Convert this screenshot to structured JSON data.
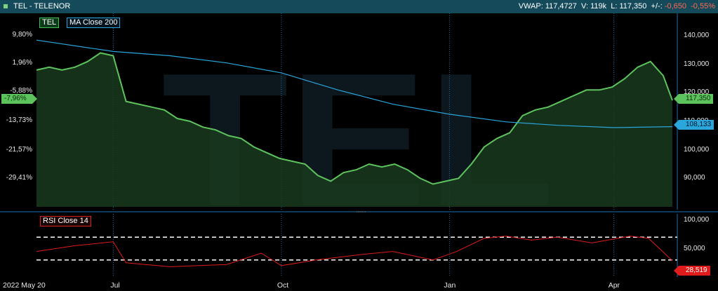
{
  "header": {
    "symbol": "TEL - TELENOR",
    "vwap": "VWAP: 117,4727",
    "volume": "V: 119k",
    "last": "L: 117,350",
    "change_label": "+/-:",
    "change": "-0,650",
    "change_pct": "-0,55%"
  },
  "watermark": "TEL",
  "legend": {
    "price": "TEL",
    "ma": "MA Close 200",
    "rsi": "RSI Close 14"
  },
  "tags": {
    "left_pct": "-7,96%",
    "price": "117,350",
    "ma": "108,133",
    "rsi": "28,519"
  },
  "colors": {
    "header_bg": "#144a5a",
    "price_line": "#5dc45d",
    "price_fill": "#1a3a1f",
    "ma_line": "#29a6dc",
    "rsi_line": "#e01b1b",
    "grid": "#1f6fb0"
  },
  "chart_data": [
    {
      "type": "area",
      "title": "TEL",
      "series": [
        {
          "name": "TEL",
          "x": [
            "2022-05-20",
            "2022-05-27",
            "2022-06-03",
            "2022-06-10",
            "2022-06-17",
            "2022-06-24",
            "2022-07-01",
            "2022-07-08",
            "2022-07-15",
            "2022-07-22",
            "2022-07-29",
            "2022-08-05",
            "2022-08-12",
            "2022-08-19",
            "2022-08-26",
            "2022-09-02",
            "2022-09-09",
            "2022-09-16",
            "2022-09-23",
            "2022-09-30",
            "2022-10-07",
            "2022-10-14",
            "2022-10-21",
            "2022-10-28",
            "2022-11-04",
            "2022-11-11",
            "2022-11-18",
            "2022-11-25",
            "2022-12-02",
            "2022-12-09",
            "2022-12-16",
            "2022-12-23",
            "2022-12-30",
            "2023-01-06",
            "2023-01-13",
            "2023-01-20",
            "2023-01-27",
            "2023-02-03",
            "2023-02-10",
            "2023-02-17",
            "2023-02-24",
            "2023-03-03",
            "2023-03-10",
            "2023-03-17",
            "2023-03-24",
            "2023-03-31",
            "2023-04-07",
            "2023-04-14",
            "2023-04-21",
            "2023-04-28",
            "2023-05-03"
          ],
          "values": [
            128,
            129,
            128,
            129,
            131,
            134,
            133,
            117,
            116,
            115,
            114,
            111,
            110,
            108,
            107,
            105,
            104,
            101,
            99,
            97,
            96,
            95,
            91,
            89,
            92,
            93,
            95,
            94,
            95,
            93,
            90,
            88,
            89,
            90,
            95,
            101,
            104,
            106,
            112,
            114,
            115,
            117,
            119,
            121,
            121,
            122,
            125,
            129,
            131,
            126,
            117.35
          ]
        },
        {
          "name": "MA Close 200",
          "x": [
            "2022-05-20",
            "2022-07-01",
            "2022-08-01",
            "2022-09-01",
            "2022-10-01",
            "2022-11-01",
            "2022-12-01",
            "2023-01-01",
            "2023-02-01",
            "2023-03-01",
            "2023-04-01",
            "2023-05-03"
          ],
          "values": [
            138.5,
            134.5,
            133,
            130.5,
            127,
            121,
            116,
            112.5,
            109.8,
            108.6,
            107.8,
            108.133
          ]
        }
      ],
      "left_axis_ticks": [
        "9,80%",
        "1,96%",
        "-5,88%",
        "-13,73%",
        "-21,57%",
        "-29,41%"
      ],
      "right_axis_ticks": [
        "140,000",
        "130,000",
        "120,000",
        "110,000",
        "100,000",
        "90,000"
      ],
      "ylim": [
        80,
        145
      ],
      "grid": true
    },
    {
      "type": "line",
      "title": "RSI Close 14",
      "series": [
        {
          "name": "RSI Close 14",
          "x": [
            "2022-05-20",
            "2022-06-10",
            "2022-07-01",
            "2022-07-08",
            "2022-08-01",
            "2022-09-01",
            "2022-09-20",
            "2022-10-01",
            "2022-10-20",
            "2022-11-15",
            "2022-12-01",
            "2022-12-23",
            "2023-01-05",
            "2023-01-20",
            "2023-02-01",
            "2023-02-15",
            "2023-03-01",
            "2023-03-20",
            "2023-04-10",
            "2023-04-20",
            "2023-05-03"
          ],
          "values": [
            45,
            55,
            62,
            25,
            18,
            22,
            42,
            20,
            30,
            40,
            45,
            30,
            45,
            68,
            72,
            65,
            70,
            60,
            72,
            68,
            28.519
          ]
        }
      ],
      "right_axis_ticks": [
        "100,000",
        "50,000"
      ],
      "ylim": [
        0,
        100
      ],
      "bands": [
        30,
        70
      ],
      "grid": true
    }
  ],
  "x_axis_labels": [
    "2022 May 20",
    "Jul",
    "Oct",
    "Jan",
    "Apr"
  ]
}
